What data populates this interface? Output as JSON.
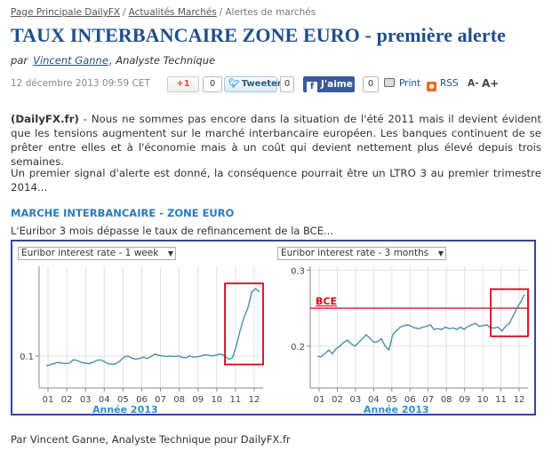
{
  "breadcrumb": {
    "home": "Page Principale DailyFX",
    "section": "Actualités Marchés",
    "current": "Alertes de marchés",
    "sep": "/"
  },
  "article": {
    "title": "TAUX INTERBANCAIRE ZONE EURO - première alerte",
    "by_prefix": "par",
    "author": "Vincent Ganne",
    "author_role": ", Analyste Technique",
    "date": "12 décembre 2013 09:59 CET"
  },
  "share": {
    "gplus_label": "+1",
    "gplus_count": "0",
    "tweet_label": "Tweeter",
    "tweet_count": "0",
    "fb_label": "J'aime",
    "fb_count": "0",
    "print_label": "Print",
    "rss_label": "RSS",
    "font_minus": "A-",
    "font_plus": "A+"
  },
  "body": {
    "p1_source": "(DailyFX.fr)",
    "p1_text": " - Nous ne sommes pas encore dans la situation de l'été 2011 mais il devient évident que les tensions augmentent sur le marché interbancaire européen. Les banques continuent de se prêter entre elles et à l'économie mais à un coût qui devient nettement plus élevé depuis trois semaines.",
    "p2_text": "Un premier signal d'alerte est donné, la conséquence pourrait être un LTRO 3 au premier trimestre 2014...",
    "subhead": "MARCHE INTERBANCAIRE - ZONE EURO",
    "caption": "L'Euribor 3 mois dépasse le taux de refinancement de la BCE...",
    "footer": "Par Vincent Ganne, Analyste Technique pour DailyFX.fr"
  },
  "colors": {
    "title": "#1f4e8c",
    "link": "#1f4e8c",
    "subhead": "#2a7ac0",
    "series": "#4a8fa8",
    "highlight_box": "#d9001b",
    "frame": "#3344aa",
    "year_label": "#2a8fd8"
  },
  "chart_data": [
    {
      "type": "line",
      "selector": "Euribor interest rate - 1 week",
      "x_ticks": [
        "01",
        "02",
        "03",
        "04",
        "05",
        "06",
        "07",
        "08",
        "09",
        "10",
        "11",
        "12"
      ],
      "y_ticks": [
        {
          "value": 0.1,
          "label": "0.1"
        }
      ],
      "ylim": [
        0.05,
        0.24
      ],
      "xlabel": "Année 2013",
      "grid": true,
      "highlight": "last-weeks",
      "series": [
        {
          "values": [
            0.085,
            0.086,
            0.088,
            0.09,
            0.089,
            0.088,
            0.089,
            0.094,
            0.093,
            0.09,
            0.089,
            0.088,
            0.09,
            0.093,
            0.094,
            0.091,
            0.088,
            0.087,
            0.088,
            0.092,
            0.098,
            0.1,
            0.097,
            0.095,
            0.096,
            0.098,
            0.096,
            0.099,
            0.103,
            0.101,
            0.1,
            0.099,
            0.1,
            0.099,
            0.1,
            0.098,
            0.097,
            0.1,
            0.098,
            0.099,
            0.1,
            0.102,
            0.101,
            0.1,
            0.102,
            0.103,
            0.1,
            0.095,
            0.097,
            0.115,
            0.14,
            0.16,
            0.175,
            0.2,
            0.205,
            0.2
          ]
        }
      ]
    },
    {
      "type": "line",
      "selector": "Euribor interest rate - 3 months",
      "x_ticks": [
        "01",
        "02",
        "03",
        "04",
        "05",
        "06",
        "07",
        "08",
        "09",
        "10",
        "11",
        "12"
      ],
      "y_ticks": [
        {
          "value": 0.2,
          "label": "0.2"
        },
        {
          "value": 0.3,
          "label": "0.3"
        }
      ],
      "ylim": [
        0.145,
        0.305
      ],
      "xlabel": "Année 2013",
      "grid": true,
      "reference_line": {
        "label": "BCE",
        "value": 0.25
      },
      "highlight": "last-weeks",
      "series": [
        {
          "values": [
            0.187,
            0.186,
            0.19,
            0.195,
            0.19,
            0.197,
            0.2,
            0.205,
            0.208,
            0.203,
            0.2,
            0.205,
            0.21,
            0.215,
            0.21,
            0.205,
            0.206,
            0.21,
            0.2,
            0.195,
            0.215,
            0.22,
            0.225,
            0.227,
            0.228,
            0.226,
            0.224,
            0.223,
            0.225,
            0.226,
            0.228,
            0.222,
            0.223,
            0.222,
            0.225,
            0.223,
            0.224,
            0.222,
            0.225,
            0.222,
            0.226,
            0.228,
            0.23,
            0.226,
            0.227,
            0.228,
            0.224,
            0.224,
            0.225,
            0.22,
            0.226,
            0.23,
            0.24,
            0.25,
            0.258,
            0.268
          ]
        }
      ]
    }
  ]
}
